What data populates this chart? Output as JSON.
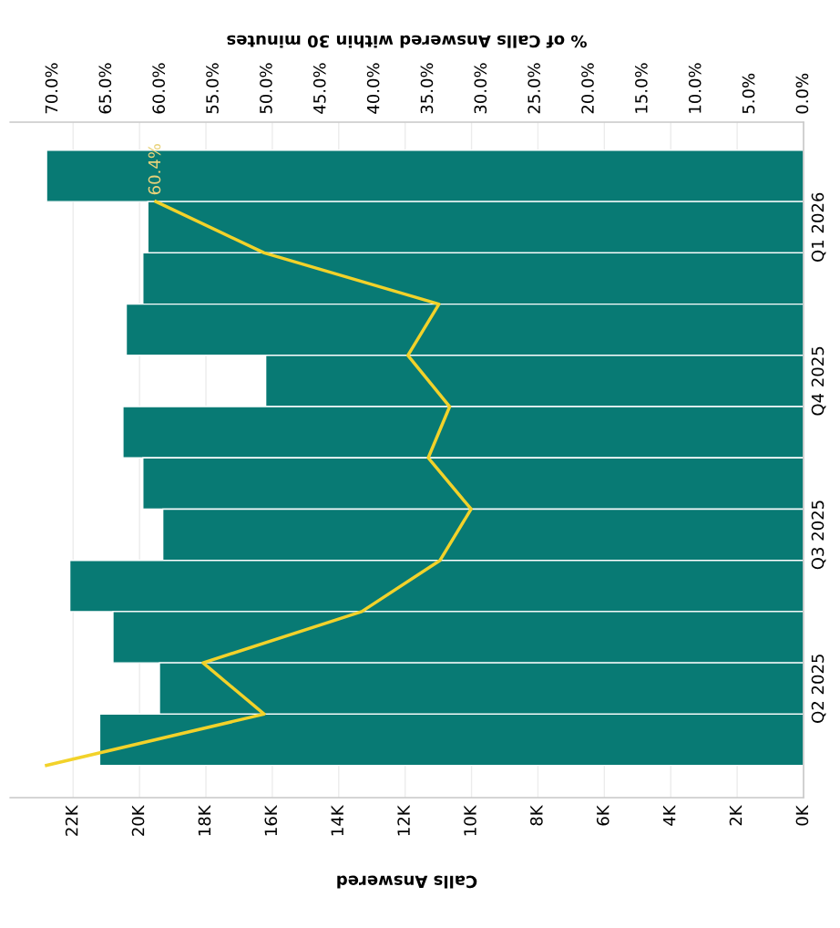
{
  "chart_data": {
    "type": "bar",
    "orientation": "horizontal",
    "categories": [
      null,
      "Q1 2026",
      null,
      null,
      "Q4 2025",
      null,
      null,
      "Q3 2025",
      null,
      null,
      "Q2 2025",
      null
    ],
    "xlabel": "Calls Answered",
    "x2label": "% of Calls Answered within 30 minutes",
    "xlim": [
      23900,
      0
    ],
    "xticks": [
      {
        "value": 0,
        "label": "0K"
      },
      {
        "value": 2000,
        "label": "2K"
      },
      {
        "value": 4000,
        "label": "4K"
      },
      {
        "value": 6000,
        "label": "6K"
      },
      {
        "value": 8000,
        "label": "8K"
      },
      {
        "value": 10000,
        "label": "10K"
      },
      {
        "value": 12000,
        "label": "12K"
      },
      {
        "value": 14000,
        "label": "14K"
      },
      {
        "value": 16000,
        "label": "16K"
      },
      {
        "value": 18000,
        "label": "18K"
      },
      {
        "value": 20000,
        "label": "20K"
      },
      {
        "value": 22000,
        "label": "22K"
      }
    ],
    "x2lim": [
      74,
      0
    ],
    "x2ticks": [
      {
        "value": 0,
        "label": "0.0%"
      },
      {
        "value": 5,
        "label": "5.0%"
      },
      {
        "value": 10,
        "label": "10.0%"
      },
      {
        "value": 15,
        "label": "15.0%"
      },
      {
        "value": 20,
        "label": "20.0%"
      },
      {
        "value": 25,
        "label": "25.0%"
      },
      {
        "value": 30,
        "label": "30.0%"
      },
      {
        "value": 35,
        "label": "35.0%"
      },
      {
        "value": 40,
        "label": "40.0%"
      },
      {
        "value": 45,
        "label": "45.0%"
      },
      {
        "value": 50,
        "label": "50.0%"
      },
      {
        "value": 55,
        "label": "55.0%"
      },
      {
        "value": 60,
        "label": "60.0%"
      },
      {
        "value": 65,
        "label": "65.0%"
      },
      {
        "value": 70,
        "label": "70.0%"
      }
    ],
    "grid": "x",
    "series": [
      {
        "color": "#087a74",
        "values": [
          22800,
          19750,
          19900,
          20400,
          16200,
          20500,
          19900,
          19300,
          22100,
          20800,
          19400,
          21200
        ]
      },
      {
        "type": "line",
        "axis": "x2",
        "color": "#f2d22a",
        "values": [
          60.4,
          50.3,
          34.0,
          36.9,
          33.0,
          35.0,
          31.0,
          33.9,
          41.2,
          56.0,
          50.3,
          70.6
        ],
        "value_labels": [
          "60.4%",
          null,
          null,
          null,
          null,
          null,
          null,
          null,
          null,
          null,
          null,
          null
        ]
      }
    ]
  }
}
